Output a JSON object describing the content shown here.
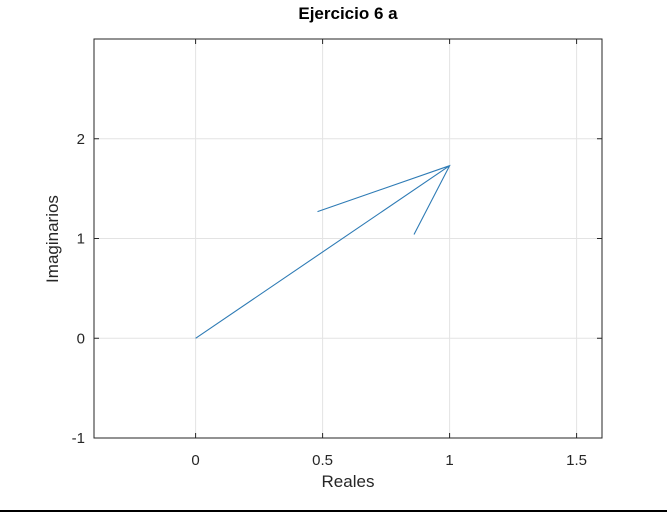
{
  "chart_data": {
    "type": "line",
    "title": "Ejercicio 6 a",
    "xlabel": "Reales",
    "ylabel": "Imaginarios",
    "xlim": [
      -0.4,
      1.6
    ],
    "ylim": [
      -1,
      3
    ],
    "xticks": [
      0,
      0.5,
      1,
      1.5
    ],
    "xtick_labels": [
      "0",
      "0.5",
      "1",
      "1.5"
    ],
    "yticks": [
      -1,
      0,
      1,
      2
    ],
    "ytick_labels": [
      "-1",
      "0",
      "1",
      "2"
    ],
    "grid": true,
    "legend": "none",
    "color": "#2e7bb5",
    "series": [
      {
        "x": [
          0,
          1,
          0.48,
          1,
          0.86
        ],
        "y": [
          0,
          1.73,
          1.27,
          1.73,
          1.04
        ]
      }
    ]
  }
}
